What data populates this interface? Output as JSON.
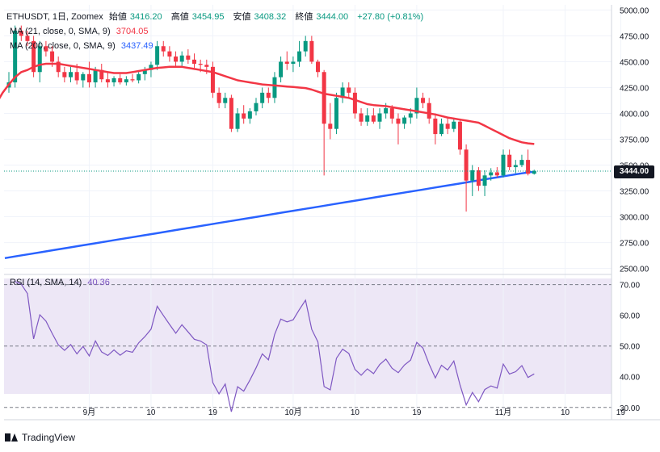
{
  "header": {
    "symbol": "ETHUSDT, 1日, Zoomex",
    "open_label": "始値",
    "open": "3416.20",
    "high_label": "高値",
    "high": "3454.95",
    "low_label": "安値",
    "low": "3408.32",
    "close_label": "終値",
    "close": "3444.00",
    "change": "+27.80 (+0.81%)",
    "ma21_label": "MA (21, close, 0, SMA, 9)",
    "ma21_value": "3704.05",
    "ma200_label": "MA (200, close, 0, SMA, 9)",
    "ma200_value": "3437.49",
    "rsi_label": "RSI (14, SMA, 14)",
    "rsi_value": "40.36"
  },
  "price_tag": "3444.00",
  "footer": {
    "brand": "TradingView"
  },
  "colors": {
    "up": "#089981",
    "down": "#f23645",
    "ma21": "#f23645",
    "ma200": "#2962ff",
    "rsi": "#7e57c2",
    "rsi_band": "#ede7f6"
  },
  "chart_data": {
    "type": "candlestick",
    "title": "ETHUSDT, 1日, Zoomex",
    "price_axis": {
      "ylim": [
        2450,
        5050
      ],
      "ticks": [
        "2500.00",
        "2750.00",
        "3000.00",
        "3250.00",
        "3500.00",
        "3750.00",
        "4000.00",
        "4250.00",
        "4500.00",
        "4750.00",
        "5000.00"
      ],
      "tick_values": [
        2500,
        2750,
        3000,
        3250,
        3500,
        3750,
        4000,
        4250,
        4500,
        4750,
        5000
      ]
    },
    "rsi_axis": {
      "ylim": [
        26,
        72
      ],
      "ticks": [
        "30.00",
        "40.00",
        "50.00",
        "60.00",
        "70.00"
      ],
      "tick_values": [
        30,
        40,
        50,
        60,
        70
      ],
      "bands": [
        30,
        50,
        70
      ]
    },
    "x_ticks": [
      {
        "label": "9月",
        "index": 13
      },
      {
        "label": "10",
        "index": 23
      },
      {
        "label": "19",
        "index": 33
      },
      {
        "label": "10月",
        "index": 46
      },
      {
        "label": "10",
        "index": 56
      },
      {
        "label": "19",
        "index": 66
      },
      {
        "label": "11月",
        "index": 80
      },
      {
        "label": "10",
        "index": 90
      },
      {
        "label": "19",
        "index": 99
      }
    ],
    "candles": [
      {
        "o": 4250,
        "h": 4400,
        "l": 4200,
        "c": 4300
      },
      {
        "o": 4300,
        "h": 4850,
        "l": 4250,
        "c": 4800
      },
      {
        "o": 4800,
        "h": 4850,
        "l": 4700,
        "c": 4750
      },
      {
        "o": 4750,
        "h": 4800,
        "l": 4650,
        "c": 4700
      },
      {
        "o": 4700,
        "h": 4750,
        "l": 4350,
        "c": 4400
      },
      {
        "o": 4400,
        "h": 4700,
        "l": 4300,
        "c": 4650
      },
      {
        "o": 4650,
        "h": 4700,
        "l": 4550,
        "c": 4600
      },
      {
        "o": 4600,
        "h": 4650,
        "l": 4450,
        "c": 4500
      },
      {
        "o": 4500,
        "h": 4550,
        "l": 4350,
        "c": 4400
      },
      {
        "o": 4400,
        "h": 4450,
        "l": 4300,
        "c": 4350
      },
      {
        "o": 4350,
        "h": 4450,
        "l": 4300,
        "c": 4400
      },
      {
        "o": 4400,
        "h": 4480,
        "l": 4280,
        "c": 4320
      },
      {
        "o": 4320,
        "h": 4400,
        "l": 4250,
        "c": 4380
      },
      {
        "o": 4380,
        "h": 4500,
        "l": 4250,
        "c": 4300
      },
      {
        "o": 4300,
        "h": 4450,
        "l": 4250,
        "c": 4420
      },
      {
        "o": 4420,
        "h": 4480,
        "l": 4300,
        "c": 4330
      },
      {
        "o": 4330,
        "h": 4400,
        "l": 4250,
        "c": 4300
      },
      {
        "o": 4300,
        "h": 4360,
        "l": 4260,
        "c": 4340
      },
      {
        "o": 4340,
        "h": 4380,
        "l": 4280,
        "c": 4300
      },
      {
        "o": 4300,
        "h": 4360,
        "l": 4270,
        "c": 4330
      },
      {
        "o": 4330,
        "h": 4380,
        "l": 4300,
        "c": 4320
      },
      {
        "o": 4320,
        "h": 4400,
        "l": 4290,
        "c": 4380
      },
      {
        "o": 4380,
        "h": 4450,
        "l": 4320,
        "c": 4420
      },
      {
        "o": 4420,
        "h": 4500,
        "l": 4350,
        "c": 4470
      },
      {
        "o": 4470,
        "h": 4700,
        "l": 4420,
        "c": 4650
      },
      {
        "o": 4650,
        "h": 4700,
        "l": 4550,
        "c": 4600
      },
      {
        "o": 4600,
        "h": 4650,
        "l": 4500,
        "c": 4550
      },
      {
        "o": 4550,
        "h": 4600,
        "l": 4450,
        "c": 4500
      },
      {
        "o": 4500,
        "h": 4600,
        "l": 4450,
        "c": 4560
      },
      {
        "o": 4560,
        "h": 4620,
        "l": 4480,
        "c": 4520
      },
      {
        "o": 4520,
        "h": 4580,
        "l": 4440,
        "c": 4480
      },
      {
        "o": 4480,
        "h": 4520,
        "l": 4400,
        "c": 4470
      },
      {
        "o": 4470,
        "h": 4520,
        "l": 4380,
        "c": 4450
      },
      {
        "o": 4450,
        "h": 4500,
        "l": 4150,
        "c": 4200
      },
      {
        "o": 4200,
        "h": 4250,
        "l": 4050,
        "c": 4100
      },
      {
        "o": 4100,
        "h": 4200,
        "l": 4050,
        "c": 4150
      },
      {
        "o": 4150,
        "h": 4180,
        "l": 3820,
        "c": 3850
      },
      {
        "o": 3850,
        "h": 4050,
        "l": 3820,
        "c": 4000
      },
      {
        "o": 4000,
        "h": 4080,
        "l": 3900,
        "c": 3950
      },
      {
        "o": 3950,
        "h": 4050,
        "l": 3900,
        "c": 4020
      },
      {
        "o": 4020,
        "h": 4150,
        "l": 3980,
        "c": 4100
      },
      {
        "o": 4100,
        "h": 4250,
        "l": 4050,
        "c": 4200
      },
      {
        "o": 4200,
        "h": 4250,
        "l": 4100,
        "c": 4150
      },
      {
        "o": 4150,
        "h": 4400,
        "l": 4100,
        "c": 4350
      },
      {
        "o": 4350,
        "h": 4550,
        "l": 4300,
        "c": 4500
      },
      {
        "o": 4500,
        "h": 4600,
        "l": 4420,
        "c": 4480
      },
      {
        "o": 4480,
        "h": 4550,
        "l": 4400,
        "c": 4500
      },
      {
        "o": 4500,
        "h": 4700,
        "l": 4450,
        "c": 4600
      },
      {
        "o": 4600,
        "h": 4750,
        "l": 4550,
        "c": 4700
      },
      {
        "o": 4700,
        "h": 4750,
        "l": 4480,
        "c": 4500
      },
      {
        "o": 4500,
        "h": 4520,
        "l": 4350,
        "c": 4400
      },
      {
        "o": 4400,
        "h": 4420,
        "l": 3400,
        "c": 3900
      },
      {
        "o": 3900,
        "h": 4100,
        "l": 3750,
        "c": 3850
      },
      {
        "o": 3850,
        "h": 4200,
        "l": 3800,
        "c": 4150
      },
      {
        "o": 4150,
        "h": 4300,
        "l": 4100,
        "c": 4250
      },
      {
        "o": 4250,
        "h": 4300,
        "l": 4150,
        "c": 4200
      },
      {
        "o": 4200,
        "h": 4250,
        "l": 3950,
        "c": 4000
      },
      {
        "o": 4000,
        "h": 4050,
        "l": 3880,
        "c": 3920
      },
      {
        "o": 3920,
        "h": 4050,
        "l": 3880,
        "c": 3980
      },
      {
        "o": 3980,
        "h": 4050,
        "l": 3900,
        "c": 3920
      },
      {
        "o": 3920,
        "h": 4050,
        "l": 3850,
        "c": 4000
      },
      {
        "o": 4000,
        "h": 4100,
        "l": 3950,
        "c": 4050
      },
      {
        "o": 4050,
        "h": 4080,
        "l": 3900,
        "c": 3950
      },
      {
        "o": 3950,
        "h": 4000,
        "l": 3700,
        "c": 3900
      },
      {
        "o": 3900,
        "h": 3980,
        "l": 3850,
        "c": 3960
      },
      {
        "o": 3960,
        "h": 4050,
        "l": 3900,
        "c": 4000
      },
      {
        "o": 4000,
        "h": 4250,
        "l": 3950,
        "c": 4150
      },
      {
        "o": 4150,
        "h": 4200,
        "l": 4050,
        "c": 4100
      },
      {
        "o": 4100,
        "h": 4150,
        "l": 3900,
        "c": 3950
      },
      {
        "o": 3950,
        "h": 4000,
        "l": 3700,
        "c": 3800
      },
      {
        "o": 3800,
        "h": 3950,
        "l": 3780,
        "c": 3900
      },
      {
        "o": 3900,
        "h": 3950,
        "l": 3800,
        "c": 3850
      },
      {
        "o": 3850,
        "h": 3950,
        "l": 3820,
        "c": 3920
      },
      {
        "o": 3920,
        "h": 3950,
        "l": 3600,
        "c": 3650
      },
      {
        "o": 3650,
        "h": 3700,
        "l": 3050,
        "c": 3350
      },
      {
        "o": 3350,
        "h": 3500,
        "l": 3200,
        "c": 3450
      },
      {
        "o": 3450,
        "h": 3480,
        "l": 3250,
        "c": 3300
      },
      {
        "o": 3300,
        "h": 3450,
        "l": 3200,
        "c": 3400
      },
      {
        "o": 3400,
        "h": 3470,
        "l": 3350,
        "c": 3430
      },
      {
        "o": 3430,
        "h": 3480,
        "l": 3380,
        "c": 3400
      },
      {
        "o": 3400,
        "h": 3650,
        "l": 3380,
        "c": 3600
      },
      {
        "o": 3600,
        "h": 3650,
        "l": 3450,
        "c": 3480
      },
      {
        "o": 3480,
        "h": 3550,
        "l": 3420,
        "c": 3500
      },
      {
        "o": 3500,
        "h": 3600,
        "l": 3480,
        "c": 3550
      },
      {
        "o": 3550,
        "h": 3650,
        "l": 3400,
        "c": 3416
      },
      {
        "o": 3416,
        "h": 3455,
        "l": 3408,
        "c": 3444
      }
    ],
    "ma21": [
      4100,
      4200,
      4280,
      4350,
      4400,
      4420,
      4450,
      4470,
      4480,
      4480,
      4480,
      4470,
      4460,
      4450,
      4440,
      4430,
      4420,
      4410,
      4400,
      4390,
      4390,
      4390,
      4400,
      4410,
      4420,
      4430,
      4440,
      4445,
      4450,
      4450,
      4450,
      4440,
      4430,
      4420,
      4410,
      4400,
      4380,
      4360,
      4340,
      4320,
      4310,
      4300,
      4290,
      4280,
      4275,
      4270,
      4265,
      4260,
      4255,
      4250,
      4245,
      4230,
      4210,
      4190,
      4180,
      4170,
      4160,
      4150,
      4130,
      4110,
      4090,
      4080,
      4075,
      4070,
      4060,
      4050,
      4040,
      4030,
      4020,
      4010,
      4000,
      3990,
      3975,
      3960,
      3950,
      3940,
      3930,
      3920,
      3910,
      3880,
      3850,
      3820,
      3790,
      3760,
      3740,
      3720,
      3710,
      3704
    ],
    "ma200": [
      2600,
      2620,
      2640,
      2660,
      2680,
      2700,
      2720,
      2740,
      2760,
      2780,
      2800,
      2820,
      2840,
      2860,
      2880,
      2900,
      2920,
      2940,
      2960,
      2980,
      3000,
      3020,
      3040,
      3060,
      3080,
      3100,
      3120,
      3140,
      3160,
      3180,
      3200,
      3220,
      3240,
      3260,
      3280,
      3300,
      3320,
      3340,
      3360,
      3380,
      3400,
      3420,
      3437
    ]
  }
}
